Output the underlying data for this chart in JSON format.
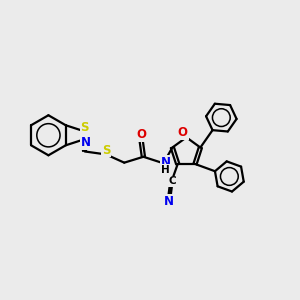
{
  "background_color": "#ebebeb",
  "atom_colors": {
    "C": "#000000",
    "N": "#0000ee",
    "O": "#dd0000",
    "S": "#cccc00",
    "H": "#000000"
  },
  "bond_color": "#000000",
  "bond_width": 1.6,
  "font_size_atom": 8.5,
  "title": ""
}
